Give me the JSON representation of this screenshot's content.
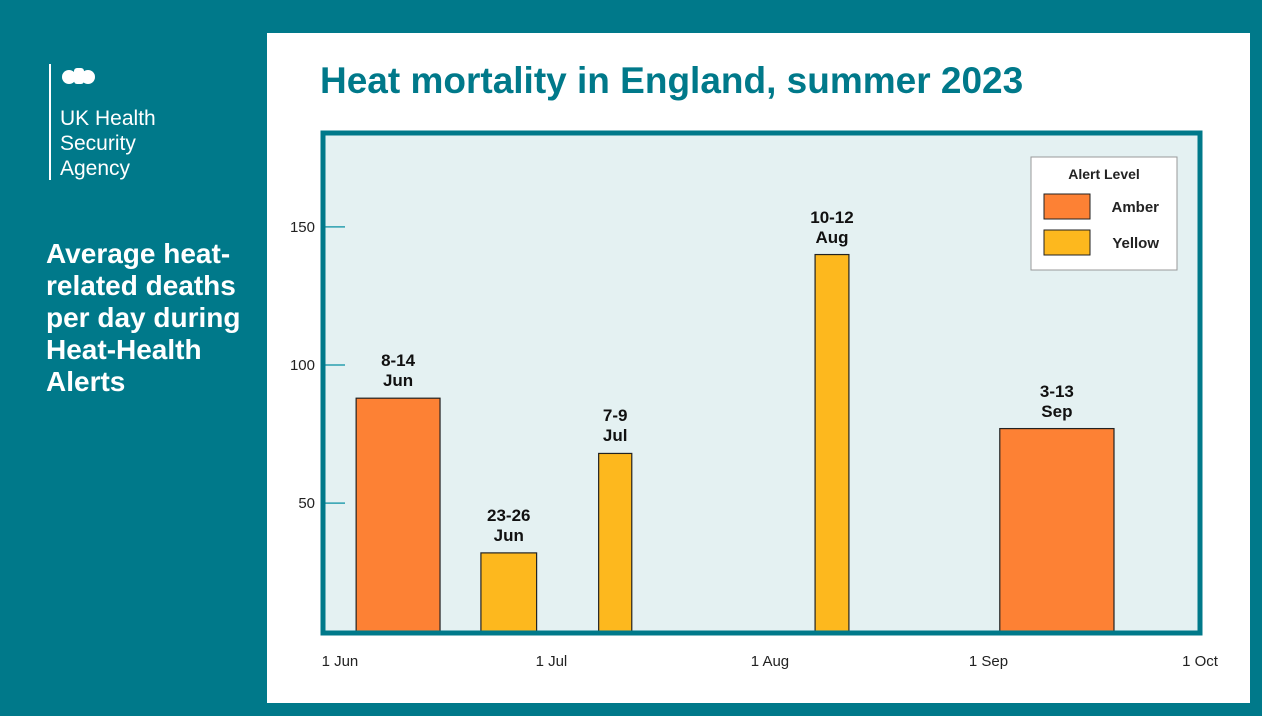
{
  "organisation": "UK Health Security Agency",
  "chart_data": {
    "type": "bar",
    "title": "Heat mortality in England, summer 2023",
    "subtitle": "Average heat-related deaths per day during Heat-Health Alerts",
    "categories": [
      "8-14 Jun",
      "23-26 Jun",
      "7-9 Jul",
      "10-12 Aug",
      "3-13 Sep"
    ],
    "x_start": [
      2.3,
      20.0,
      36.7,
      67.4,
      93.6
    ],
    "x_end": [
      14.2,
      27.9,
      41.4,
      72.2,
      109.8
    ],
    "series": [
      {
        "name": "Amber",
        "color": "#fd8134",
        "values": [
          88,
          null,
          null,
          null,
          77
        ]
      },
      {
        "name": "Yellow",
        "color": "#fdb81e",
        "values": [
          null,
          32,
          68,
          140,
          null
        ]
      }
    ],
    "legend_title": "Alert Level",
    "legend": "upper right",
    "xlim": [
      -2.4,
      122
    ],
    "xticks": [
      {
        "value": 0,
        "label": "1 Jun"
      },
      {
        "value": 30,
        "label": "1 Jul"
      },
      {
        "value": 61,
        "label": "1 Aug"
      },
      {
        "value": 92,
        "label": "1 Sep"
      },
      {
        "value": 122,
        "label": "1 Oct"
      }
    ],
    "ylim": [
      3,
      184
    ],
    "yticks": [
      50,
      100,
      150
    ]
  }
}
